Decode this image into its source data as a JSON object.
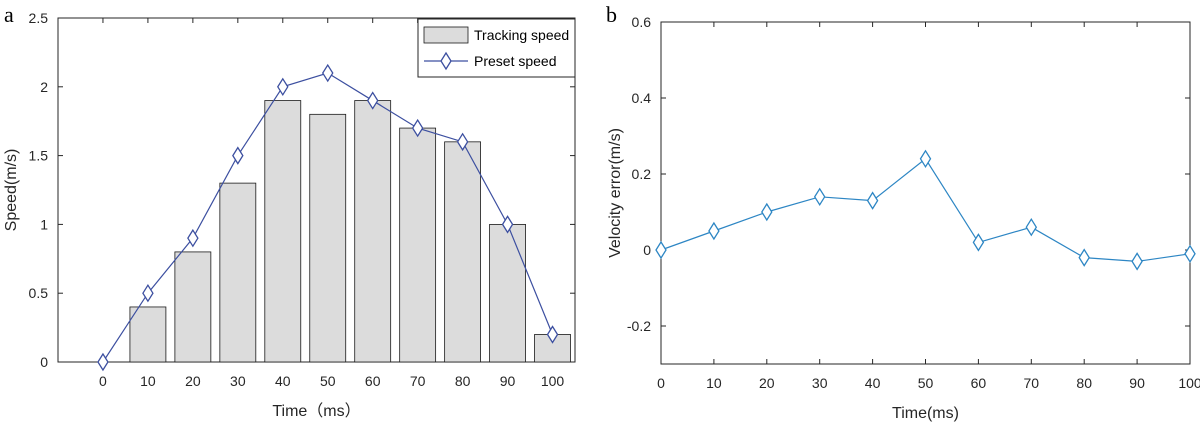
{
  "chart_data": [
    {
      "panel_label": "a",
      "type": "bar",
      "xlabel": "Time（ms）",
      "ylabel": "Speed(m/s)",
      "xlim": [
        -10,
        105
      ],
      "ylim": [
        0,
        2.5
      ],
      "x_ticks": [
        "0",
        "10",
        "20",
        "30",
        "40",
        "50",
        "60",
        "70",
        "80",
        "90",
        "100"
      ],
      "y_ticks": [
        "0",
        "0.5",
        "1",
        "1.5",
        "2",
        "2.5"
      ],
      "legend_position": "top-right",
      "series": [
        {
          "name": "Tracking speed",
          "kind": "bar",
          "color": "#dcdcdc",
          "x": [
            10,
            20,
            30,
            40,
            50,
            60,
            70,
            80,
            90,
            100
          ],
          "values": [
            0.4,
            0.8,
            1.3,
            1.9,
            1.8,
            1.9,
            1.7,
            1.6,
            1.0,
            0.2
          ]
        },
        {
          "name": "Preset speed",
          "kind": "line",
          "color": "#3c4fa0",
          "marker": "diamond",
          "x": [
            0,
            10,
            20,
            30,
            40,
            50,
            60,
            70,
            80,
            90,
            100
          ],
          "values": [
            0,
            0.5,
            0.9,
            1.5,
            2.0,
            2.1,
            1.9,
            1.7,
            1.6,
            1.0,
            0.2
          ]
        }
      ]
    },
    {
      "panel_label": "b",
      "type": "line",
      "xlabel": "Time(ms)",
      "ylabel": "Velocity error(m/s)",
      "xlim": [
        0,
        100
      ],
      "ylim": [
        -0.3,
        0.6
      ],
      "x_ticks": [
        "0",
        "10",
        "20",
        "30",
        "40",
        "50",
        "60",
        "70",
        "80",
        "90",
        "100"
      ],
      "y_ticks": [
        "-0.2",
        "0",
        "0.2",
        "0.4",
        "0.6"
      ],
      "series": [
        {
          "kind": "line",
          "color": "#2d86c4",
          "marker": "diamond",
          "x": [
            0,
            10,
            20,
            30,
            40,
            50,
            60,
            70,
            80,
            90,
            100
          ],
          "values": [
            0,
            0.05,
            0.1,
            0.14,
            0.13,
            0.24,
            0.02,
            0.06,
            -0.02,
            -0.03,
            -0.01
          ]
        }
      ]
    }
  ]
}
